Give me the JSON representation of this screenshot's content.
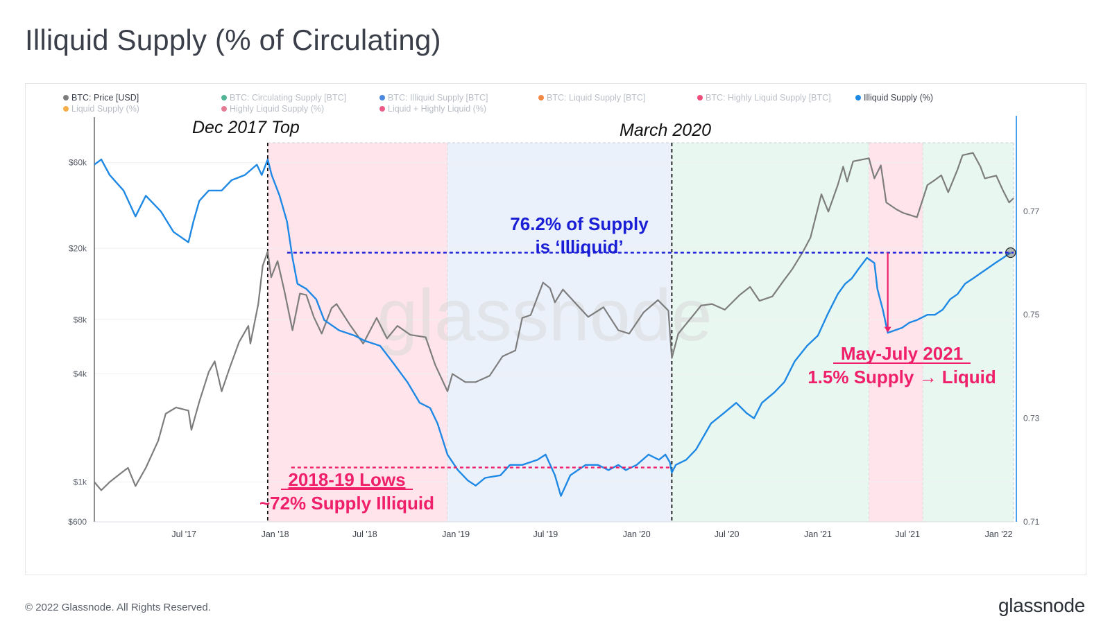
{
  "header": {
    "title": "Illiquid Supply (% of Circulating)"
  },
  "footer": {
    "copyright": "© 2022 Glassnode. All Rights Reserved.",
    "logo": "glassnode"
  },
  "watermark": "glassnode",
  "colors": {
    "price": "#7d7d7d",
    "illiquid_pct": "#1e88e5",
    "red_zone": "#ffe4ec",
    "blue_zone": "#eaf1fb",
    "green_zone": "#e8f7f0",
    "annotation_blue": "#1a1fd6",
    "annotation_pink": "#ef1f6a",
    "axis_right": "#1e88e5"
  },
  "chart_data": {
    "type": "line",
    "legend": [
      {
        "label": "BTC: Price [USD]",
        "color": "#7d7d7d",
        "active": true
      },
      {
        "label": "BTC: Circulating Supply [BTC]",
        "color": "#26a17b",
        "active": false
      },
      {
        "label": "BTC: Illiquid Supply [BTC]",
        "color": "#1e6bd6",
        "active": false
      },
      {
        "label": "BTC: Liquid Supply [BTC]",
        "color": "#f06a16",
        "active": false
      },
      {
        "label": "BTC: Highly Liquid Supply [BTC]",
        "color": "#ef1f5a",
        "active": false
      },
      {
        "label": "Illiquid Supply (%)",
        "color": "#1e88e5",
        "active": true
      },
      {
        "label": "Liquid Supply (%)",
        "color": "#f59a1a",
        "active": false
      },
      {
        "label": "Highly Liquid Supply (%)",
        "color": "#e05a7a",
        "active": false
      },
      {
        "label": "Liquid + Highly Liquid (%)",
        "color": "#e8336a",
        "active": false
      }
    ],
    "x_ticks": [
      "Jul '17",
      "Jan '18",
      "Jul '18",
      "Jan '19",
      "Jul '19",
      "Jan '20",
      "Jul '20",
      "Jan '21",
      "Jul '21",
      "Jan '22"
    ],
    "x_tick_dates": [
      "2017-07-01",
      "2018-01-01",
      "2018-07-01",
      "2019-01-01",
      "2019-07-01",
      "2020-01-01",
      "2020-07-01",
      "2021-01-01",
      "2021-07-01",
      "2022-01-01"
    ],
    "x_range": [
      "2017-01-01",
      "2022-01-31"
    ],
    "y_left": {
      "scale": "log",
      "ticks": [
        600,
        1000,
        4000,
        8000,
        20000,
        60000
      ],
      "tick_labels": [
        "$600",
        "$1k",
        "$4k",
        "$8k",
        "$20k",
        "$60k"
      ],
      "range": [
        600,
        90000
      ]
    },
    "y_right": {
      "ticks": [
        0.71,
        0.73,
        0.75,
        0.77
      ],
      "tick_labels": [
        "0.71",
        "0.73",
        "0.75",
        "0.77"
      ],
      "range": [
        0.71,
        0.7855
      ]
    },
    "series": [
      {
        "name": "BTC: Price [USD]",
        "axis": "left",
        "points": [
          [
            "2017-01-01",
            1000
          ],
          [
            "2017-01-15",
            900
          ],
          [
            "2017-02-01",
            1000
          ],
          [
            "2017-02-20",
            1100
          ],
          [
            "2017-03-10",
            1200
          ],
          [
            "2017-03-25",
            950
          ],
          [
            "2017-04-15",
            1200
          ],
          [
            "2017-05-10",
            1700
          ],
          [
            "2017-05-25",
            2400
          ],
          [
            "2017-06-15",
            2600
          ],
          [
            "2017-07-10",
            2500
          ],
          [
            "2017-07-16",
            1950
          ],
          [
            "2017-08-01",
            2800
          ],
          [
            "2017-08-20",
            4100
          ],
          [
            "2017-09-01",
            4700
          ],
          [
            "2017-09-15",
            3200
          ],
          [
            "2017-10-01",
            4300
          ],
          [
            "2017-10-20",
            6000
          ],
          [
            "2017-11-08",
            7400
          ],
          [
            "2017-11-12",
            5900
          ],
          [
            "2017-11-28",
            9800
          ],
          [
            "2017-12-07",
            16000
          ],
          [
            "2017-12-17",
            19200
          ],
          [
            "2017-12-24",
            13800
          ],
          [
            "2018-01-06",
            17000
          ],
          [
            "2018-01-20",
            11500
          ],
          [
            "2018-02-05",
            7000
          ],
          [
            "2018-02-20",
            11200
          ],
          [
            "2018-03-05",
            11000
          ],
          [
            "2018-03-20",
            8300
          ],
          [
            "2018-04-05",
            6700
          ],
          [
            "2018-04-25",
            9300
          ],
          [
            "2018-05-05",
            9800
          ],
          [
            "2018-06-01",
            7500
          ],
          [
            "2018-06-28",
            5900
          ],
          [
            "2018-07-25",
            8200
          ],
          [
            "2018-08-15",
            6300
          ],
          [
            "2018-09-05",
            7400
          ],
          [
            "2018-10-01",
            6600
          ],
          [
            "2018-11-01",
            6400
          ],
          [
            "2018-11-20",
            4500
          ],
          [
            "2018-12-15",
            3200
          ],
          [
            "2018-12-25",
            4000
          ],
          [
            "2019-01-20",
            3600
          ],
          [
            "2019-02-10",
            3600
          ],
          [
            "2019-03-10",
            3900
          ],
          [
            "2019-04-05",
            5000
          ],
          [
            "2019-05-01",
            5400
          ],
          [
            "2019-05-15",
            8200
          ],
          [
            "2019-06-01",
            8500
          ],
          [
            "2019-06-26",
            12900
          ],
          [
            "2019-07-10",
            12000
          ],
          [
            "2019-07-20",
            10000
          ],
          [
            "2019-08-05",
            11800
          ],
          [
            "2019-09-01",
            9800
          ],
          [
            "2019-09-25",
            8300
          ],
          [
            "2019-10-26",
            9400
          ],
          [
            "2019-11-25",
            7000
          ],
          [
            "2019-12-17",
            6700
          ],
          [
            "2020-01-15",
            8800
          ],
          [
            "2020-02-13",
            10300
          ],
          [
            "2020-03-05",
            9000
          ],
          [
            "2020-03-12",
            4900
          ],
          [
            "2020-03-25",
            6700
          ],
          [
            "2020-04-29",
            8800
          ],
          [
            "2020-05-10",
            9600
          ],
          [
            "2020-06-01",
            9800
          ],
          [
            "2020-06-27",
            9100
          ],
          [
            "2020-07-27",
            11000
          ],
          [
            "2020-08-17",
            12200
          ],
          [
            "2020-09-05",
            10200
          ],
          [
            "2020-10-01",
            10800
          ],
          [
            "2020-10-21",
            12900
          ],
          [
            "2020-11-10",
            15300
          ],
          [
            "2020-12-01",
            19000
          ],
          [
            "2020-12-17",
            23000
          ],
          [
            "2021-01-08",
            40000
          ],
          [
            "2021-01-22",
            32000
          ],
          [
            "2021-02-10",
            45000
          ],
          [
            "2021-02-21",
            57000
          ],
          [
            "2021-03-01",
            47000
          ],
          [
            "2021-03-13",
            61000
          ],
          [
            "2021-04-14",
            63500
          ],
          [
            "2021-04-25",
            49000
          ],
          [
            "2021-05-08",
            58000
          ],
          [
            "2021-05-19",
            36000
          ],
          [
            "2021-06-08",
            33000
          ],
          [
            "2021-06-22",
            31500
          ],
          [
            "2021-07-20",
            29800
          ],
          [
            "2021-08-10",
            45000
          ],
          [
            "2021-08-25",
            48000
          ],
          [
            "2021-09-07",
            51000
          ],
          [
            "2021-09-21",
            41000
          ],
          [
            "2021-10-10",
            55000
          ],
          [
            "2021-10-20",
            66000
          ],
          [
            "2021-11-10",
            68000
          ],
          [
            "2021-11-25",
            57000
          ],
          [
            "2021-12-04",
            49000
          ],
          [
            "2021-12-27",
            50800
          ],
          [
            "2022-01-10",
            41800
          ],
          [
            "2022-01-22",
            36000
          ],
          [
            "2022-01-31",
            38000
          ]
        ]
      },
      {
        "name": "Illiquid Supply (%)",
        "axis": "right",
        "points": [
          [
            "2017-01-01",
            0.779
          ],
          [
            "2017-01-15",
            0.78
          ],
          [
            "2017-02-01",
            0.777
          ],
          [
            "2017-03-01",
            0.774
          ],
          [
            "2017-03-25",
            0.769
          ],
          [
            "2017-04-15",
            0.773
          ],
          [
            "2017-05-15",
            0.77
          ],
          [
            "2017-06-10",
            0.766
          ],
          [
            "2017-07-10",
            0.764
          ],
          [
            "2017-07-20",
            0.768
          ],
          [
            "2017-08-01",
            0.772
          ],
          [
            "2017-08-20",
            0.774
          ],
          [
            "2017-09-15",
            0.774
          ],
          [
            "2017-10-05",
            0.776
          ],
          [
            "2017-11-01",
            0.777
          ],
          [
            "2017-11-25",
            0.779
          ],
          [
            "2017-12-05",
            0.777
          ],
          [
            "2017-12-17",
            0.78
          ],
          [
            "2017-12-25",
            0.777
          ],
          [
            "2018-01-10",
            0.773
          ],
          [
            "2018-01-25",
            0.768
          ],
          [
            "2018-02-05",
            0.761
          ],
          [
            "2018-02-15",
            0.756
          ],
          [
            "2018-03-05",
            0.755
          ],
          [
            "2018-03-25",
            0.753
          ],
          [
            "2018-04-10",
            0.749
          ],
          [
            "2018-05-10",
            0.747
          ],
          [
            "2018-06-10",
            0.746
          ],
          [
            "2018-06-30",
            0.745
          ],
          [
            "2018-08-01",
            0.744
          ],
          [
            "2018-08-25",
            0.741
          ],
          [
            "2018-09-25",
            0.737
          ],
          [
            "2018-10-20",
            0.733
          ],
          [
            "2018-11-10",
            0.732
          ],
          [
            "2018-11-25",
            0.729
          ],
          [
            "2018-12-15",
            0.723
          ],
          [
            "2019-01-05",
            0.72
          ],
          [
            "2019-01-25",
            0.718
          ],
          [
            "2019-02-10",
            0.717
          ],
          [
            "2019-03-01",
            0.7185
          ],
          [
            "2019-04-01",
            0.719
          ],
          [
            "2019-04-20",
            0.721
          ],
          [
            "2019-05-15",
            0.721
          ],
          [
            "2019-06-15",
            0.722
          ],
          [
            "2019-07-01",
            0.723
          ],
          [
            "2019-07-20",
            0.719
          ],
          [
            "2019-08-01",
            0.715
          ],
          [
            "2019-08-20",
            0.719
          ],
          [
            "2019-09-20",
            0.721
          ],
          [
            "2019-10-15",
            0.721
          ],
          [
            "2019-11-05",
            0.72
          ],
          [
            "2019-11-25",
            0.721
          ],
          [
            "2019-12-10",
            0.72
          ],
          [
            "2020-01-01",
            0.721
          ],
          [
            "2020-01-25",
            0.723
          ],
          [
            "2020-02-15",
            0.722
          ],
          [
            "2020-02-28",
            0.723
          ],
          [
            "2020-03-08",
            0.7215
          ],
          [
            "2020-03-12",
            0.7195
          ],
          [
            "2020-03-20",
            0.721
          ],
          [
            "2020-04-10",
            0.722
          ],
          [
            "2020-04-30",
            0.724
          ],
          [
            "2020-05-30",
            0.729
          ],
          [
            "2020-06-25",
            0.731
          ],
          [
            "2020-07-20",
            0.733
          ],
          [
            "2020-08-10",
            0.731
          ],
          [
            "2020-08-25",
            0.73
          ],
          [
            "2020-09-10",
            0.733
          ],
          [
            "2020-10-05",
            0.735
          ],
          [
            "2020-10-25",
            0.737
          ],
          [
            "2020-11-15",
            0.741
          ],
          [
            "2020-12-10",
            0.744
          ],
          [
            "2021-01-01",
            0.746
          ],
          [
            "2021-01-20",
            0.75
          ],
          [
            "2021-02-10",
            0.754
          ],
          [
            "2021-02-25",
            0.756
          ],
          [
            "2021-03-10",
            0.757
          ],
          [
            "2021-03-25",
            0.759
          ],
          [
            "2021-04-10",
            0.761
          ],
          [
            "2021-04-25",
            0.76
          ],
          [
            "2021-05-01",
            0.755
          ],
          [
            "2021-05-12",
            0.751
          ],
          [
            "2021-05-22",
            0.7465
          ],
          [
            "2021-06-05",
            0.747
          ],
          [
            "2021-06-20",
            0.7475
          ],
          [
            "2021-07-05",
            0.7485
          ],
          [
            "2021-07-20",
            0.749
          ],
          [
            "2021-08-10",
            0.75
          ],
          [
            "2021-08-25",
            0.75
          ],
          [
            "2021-09-10",
            0.751
          ],
          [
            "2021-09-25",
            0.753
          ],
          [
            "2021-10-10",
            0.754
          ],
          [
            "2021-10-25",
            0.756
          ],
          [
            "2021-11-10",
            0.757
          ],
          [
            "2021-11-25",
            0.758
          ],
          [
            "2021-12-10",
            0.759
          ],
          [
            "2021-12-25",
            0.76
          ],
          [
            "2022-01-10",
            0.761
          ],
          [
            "2022-01-25",
            0.762
          ]
        ]
      }
    ],
    "regions": [
      {
        "from": "2017-12-17",
        "to": "2018-12-15",
        "color": "#ffe4ec"
      },
      {
        "from": "2018-12-15",
        "to": "2020-03-12",
        "color": "#eaf1fb"
      },
      {
        "from": "2020-03-12",
        "to": "2021-04-14",
        "color": "#e8f7f0"
      },
      {
        "from": "2021-04-14",
        "to": "2021-08-01",
        "color": "#ffe4ec"
      },
      {
        "from": "2021-08-01",
        "to": "2022-01-31",
        "color": "#e8f7f0"
      }
    ],
    "reference_lines": [
      {
        "type": "horizontal",
        "value": 0.762,
        "from": "2017-12-17",
        "to": "2022-01-31",
        "color": "#1a1fd6"
      },
      {
        "type": "horizontal",
        "value": 0.7205,
        "from": "2017-12-17",
        "to": "2020-03-12",
        "color": "#ef1f6a"
      }
    ],
    "vertical_markers": [
      "2017-12-17",
      "2020-03-12"
    ],
    "annotations": {
      "dec2017": "Dec 2017 Top",
      "march2020": "March 2020",
      "illiquid_line1": "76.2% of Supply",
      "illiquid_line2": "is ‘Illiquid’",
      "lows_line1": "2018-19 Lows",
      "lows_line2": "~72% Supply Illiquid",
      "may_line1": "May-July 2021",
      "may_line2": "1.5% Supply → Liquid"
    }
  }
}
